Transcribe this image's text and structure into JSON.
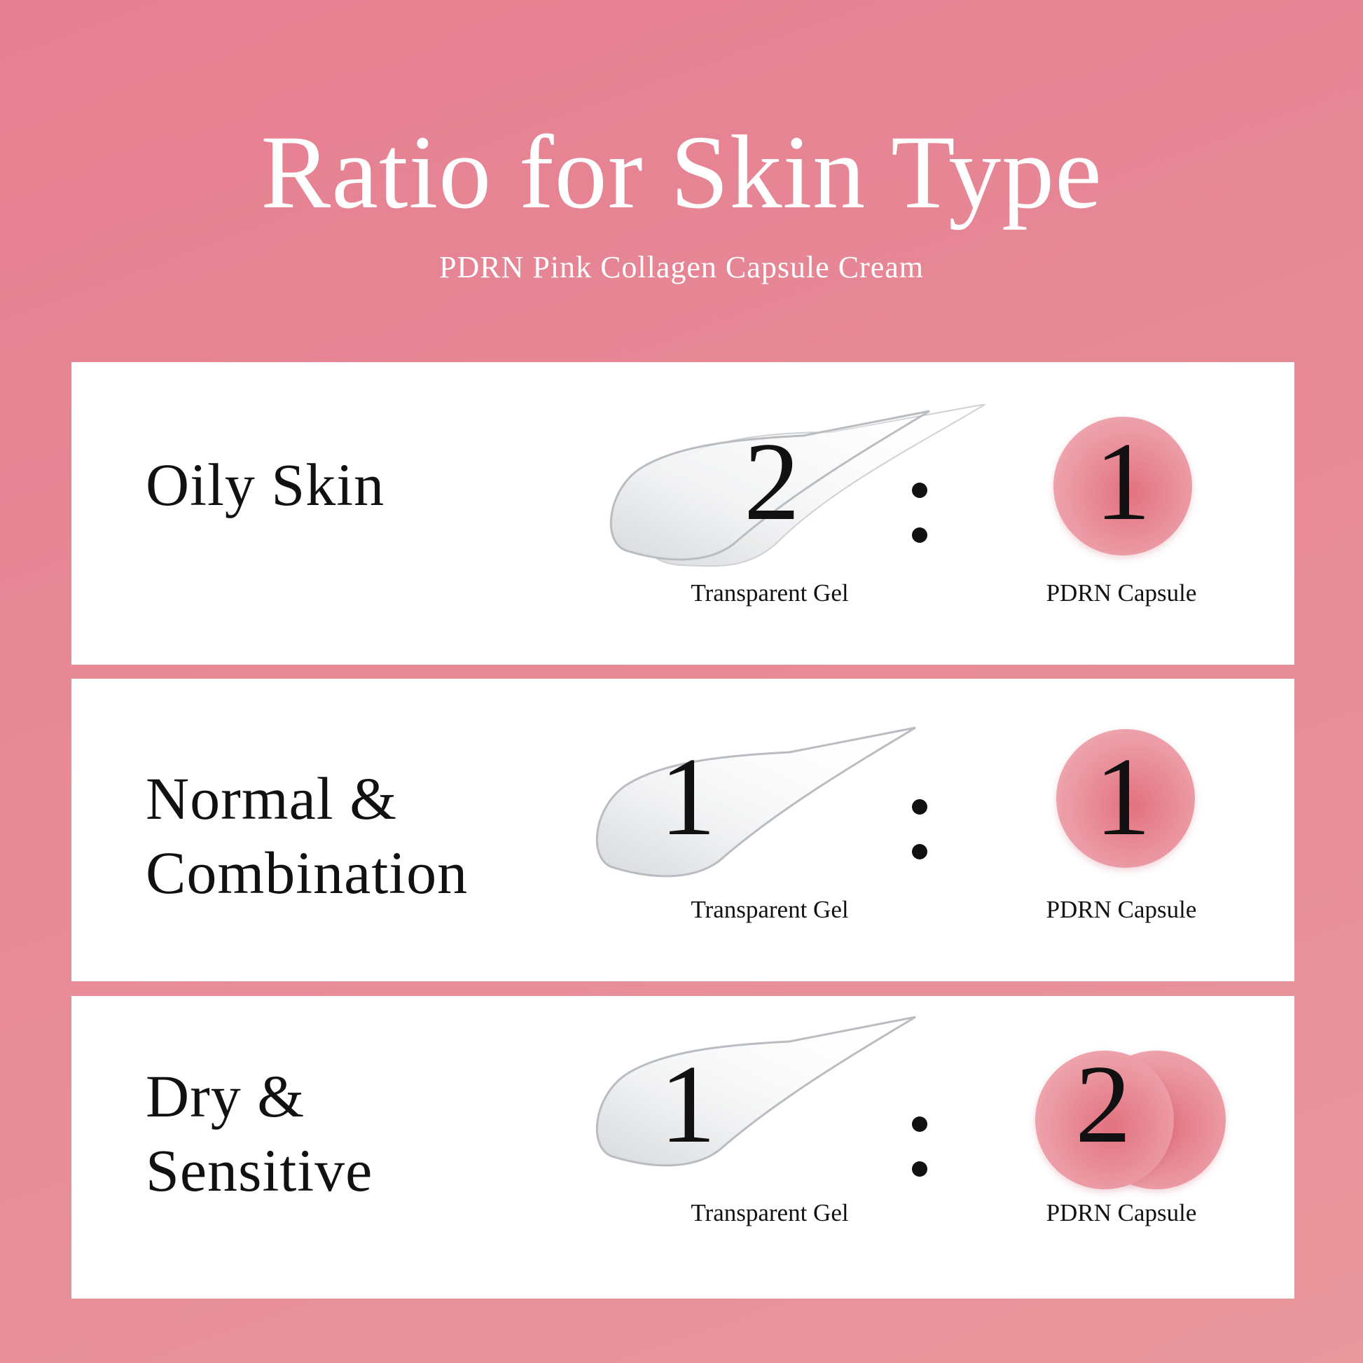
{
  "header": {
    "title": "Ratio for Skin Type",
    "subtitle": "PDRN Pink Collagen Capsule Cream"
  },
  "colors": {
    "background": "#e8869a",
    "card": "#ffffff",
    "capsule": "#e2717f"
  },
  "rows": [
    {
      "skin_type_line1": "Oily Skin",
      "skin_type_line2": "",
      "gel_ratio": "2",
      "capsule_ratio": "1",
      "gel_label": "Transparent Gel",
      "capsule_label": "PDRN Capsule",
      "separator": ":"
    },
    {
      "skin_type_line1": "Normal &",
      "skin_type_line2": "Combination",
      "gel_ratio": "1",
      "capsule_ratio": "1",
      "gel_label": "Transparent Gel",
      "capsule_label": "PDRN Capsule",
      "separator": ":"
    },
    {
      "skin_type_line1": "Dry &",
      "skin_type_line2": "Sensitive",
      "gel_ratio": "1",
      "capsule_ratio": "2",
      "gel_label": "Transparent Gel",
      "capsule_label": "PDRN Capsule",
      "separator": ":"
    }
  ]
}
